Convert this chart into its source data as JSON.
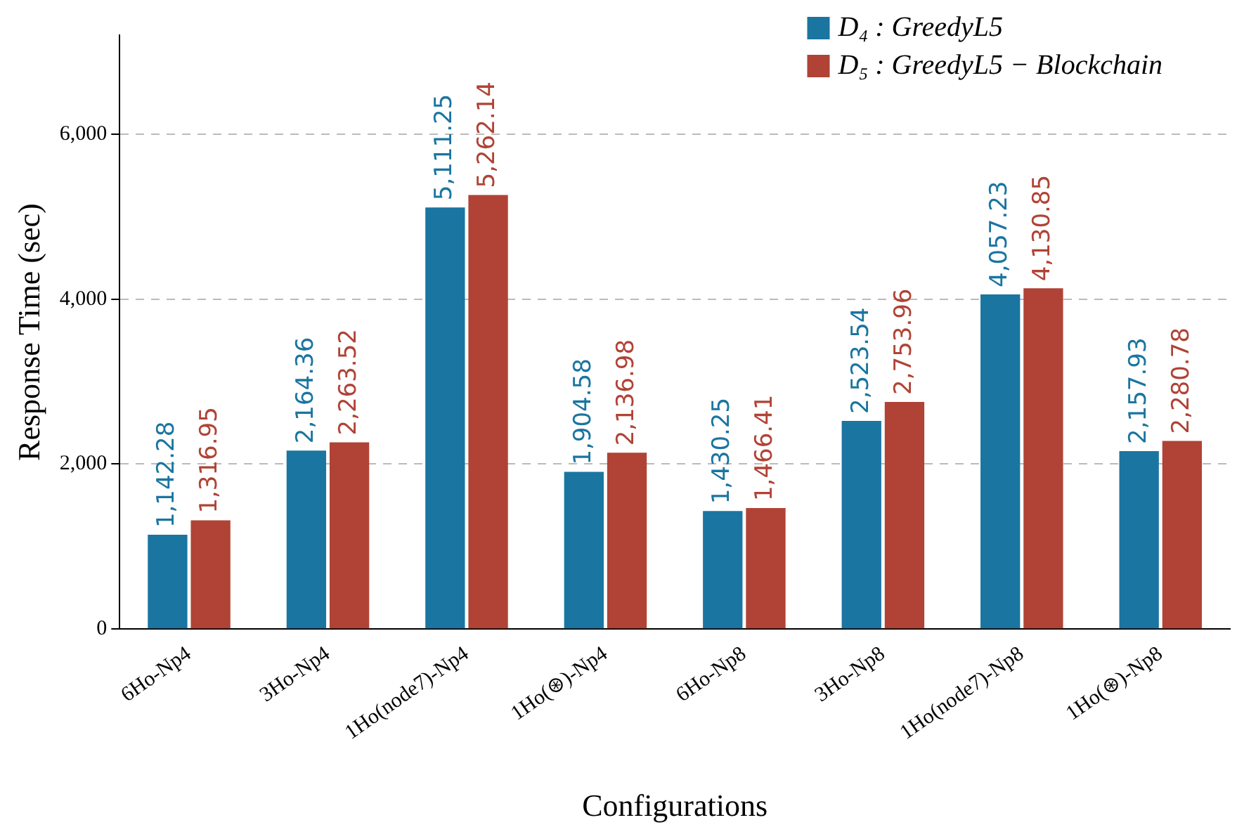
{
  "chart_data": {
    "type": "bar",
    "xlabel": "Configurations",
    "ylabel": "Response Time (sec)",
    "categories": [
      "6Ho-Np4",
      "3Ho-Np4",
      "1Ho(node7)-Np4",
      "1Ho(⊛)-Np4",
      "6Ho-Np8",
      "3Ho-Np8",
      "1Ho(node7)-Np8",
      "1Ho(⊛)-Np8"
    ],
    "series": [
      {
        "name": "D₄ : GreedyL5",
        "color": "#1a75a0",
        "values": [
          1142.28,
          2164.36,
          5111.25,
          1904.58,
          1430.25,
          2523.54,
          4057.23,
          2157.93
        ],
        "value_labels": [
          "1,142.28",
          "2,164.36",
          "5,111.25",
          "1,904.58",
          "1,430.25",
          "2,523.54",
          "4,057.23",
          "2,157.93"
        ]
      },
      {
        "name": "D₅ : GreedyL5 − Blockchain",
        "color": "#b04335",
        "values": [
          1316.95,
          2263.52,
          5262.14,
          2136.98,
          1466.41,
          2753.96,
          4130.85,
          2280.78
        ],
        "value_labels": [
          "1,316.95",
          "2,263.52",
          "5,262.14",
          "2,136.98",
          "1,466.41",
          "2,753.96",
          "4,130.85",
          "2,280.78"
        ]
      }
    ],
    "ylim": [
      0,
      7200
    ],
    "yticks": [
      {
        "value": 0,
        "label": "0"
      },
      {
        "value": 2000,
        "label": "2,000"
      },
      {
        "value": 4000,
        "label": "4,000"
      },
      {
        "value": 6000,
        "label": "6,000"
      }
    ],
    "grid": "y",
    "legend": "top right"
  }
}
